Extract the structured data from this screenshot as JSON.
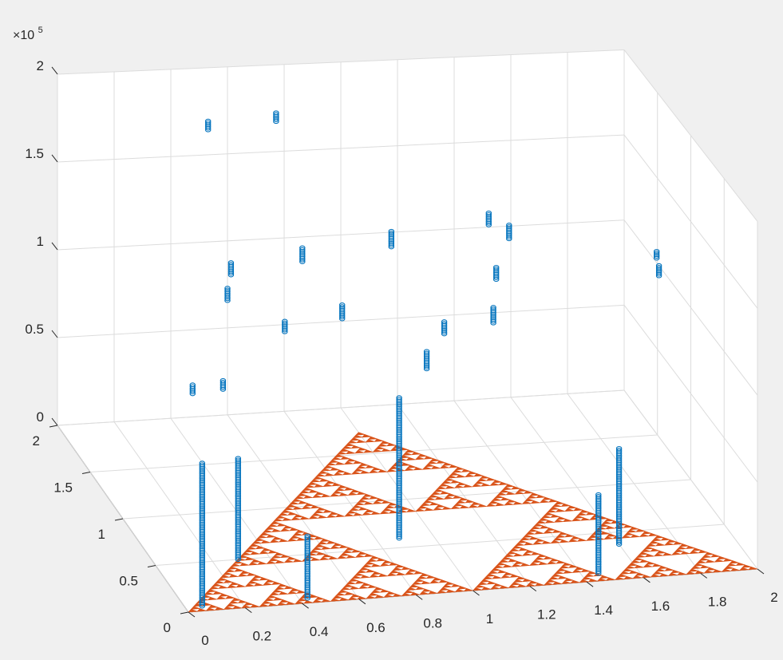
{
  "chart_data": {
    "type": "scatter3d",
    "title": "",
    "xlabel": "",
    "ylabel": "",
    "zlabel": "",
    "xlim": [
      0,
      2
    ],
    "ylim": [
      0,
      2
    ],
    "zlim": [
      0,
      200000
    ],
    "grid": true,
    "box": "back planes",
    "x_ticks": [
      "0",
      "0.2",
      "0.4",
      "0.6",
      "0.8",
      "1",
      "1.2",
      "1.4",
      "1.6",
      "1.8",
      "2"
    ],
    "y_ticks": [
      "0",
      "0.5",
      "1",
      "1.5",
      "2"
    ],
    "z_ticks": [
      "0",
      "0.5",
      "1",
      "1.5",
      "2"
    ],
    "z_exponent": {
      "base": "×10",
      "power": "5"
    },
    "colors": {
      "series": "#0072bd",
      "fractal": "#d95319",
      "grid": "#dcdcdc",
      "axis": "#262626"
    },
    "fractal": {
      "name": "Sierpinski triangle",
      "vertices": [
        [
          0,
          0
        ],
        [
          2,
          0
        ],
        [
          1,
          1.732
        ]
      ],
      "depth": 6
    },
    "series": [
      {
        "marker": "circle",
        "columns": [
          {
            "x": 0.06,
            "y": 0.05,
            "z0": 0,
            "z1": 80000
          },
          {
            "x": 0.43,
            "y": 0.05,
            "z0": 0,
            "z1": 35000
          },
          {
            "x": 0.29,
            "y": 0.5,
            "z0": 0,
            "z1": 57000
          },
          {
            "x": 0.88,
            "y": 0.6,
            "z0": 0,
            "z1": 80000
          },
          {
            "x": 1.46,
            "y": 0.08,
            "z0": 0,
            "z1": 45000
          },
          {
            "x": 1.6,
            "y": 0.37,
            "z0": 0,
            "z1": 55000
          },
          {
            "x": 0.52,
            "y": 1.95,
            "z0": 167000,
            "z1": 172000
          },
          {
            "x": 0.76,
            "y": 1.95,
            "z0": 170000,
            "z1": 175000
          },
          {
            "x": 0.41,
            "y": 1.18,
            "z0": 110000,
            "z1": 117000
          },
          {
            "x": 0.45,
            "y": 1.3,
            "z0": 118000,
            "z1": 125000
          },
          {
            "x": 0.57,
            "y": 1.0,
            "z0": 100000,
            "z1": 106000
          },
          {
            "x": 0.72,
            "y": 1.38,
            "z0": 119000,
            "z1": 127000
          },
          {
            "x": 1.05,
            "y": 1.45,
            "z0": 121000,
            "z1": 130000
          },
          {
            "x": 1.44,
            "y": 1.65,
            "z0": 120000,
            "z1": 127000
          },
          {
            "x": 1.5,
            "y": 1.6,
            "z0": 114000,
            "z1": 122000
          },
          {
            "x": 1.38,
            "y": 1.28,
            "z0": 108000,
            "z1": 115000
          },
          {
            "x": 1.3,
            "y": 0.98,
            "z0": 99000,
            "z1": 108000
          },
          {
            "x": 1.12,
            "y": 0.95,
            "z0": 96000,
            "z1": 103000
          },
          {
            "x": 1.0,
            "y": 0.7,
            "z0": 90000,
            "z1": 100000
          },
          {
            "x": 0.8,
            "y": 1.12,
            "z0": 99000,
            "z1": 107000
          },
          {
            "x": 0.13,
            "y": 0.5,
            "z0": 95000,
            "z1": 100000
          },
          {
            "x": 0.26,
            "y": 0.6,
            "z0": 91000,
            "z1": 96000
          },
          {
            "x": 1.93,
            "y": 1.18,
            "z0": 110000,
            "z1": 116000
          },
          {
            "x": 1.95,
            "y": 1.3,
            "z0": 114000,
            "z1": 118000
          }
        ]
      }
    ]
  }
}
